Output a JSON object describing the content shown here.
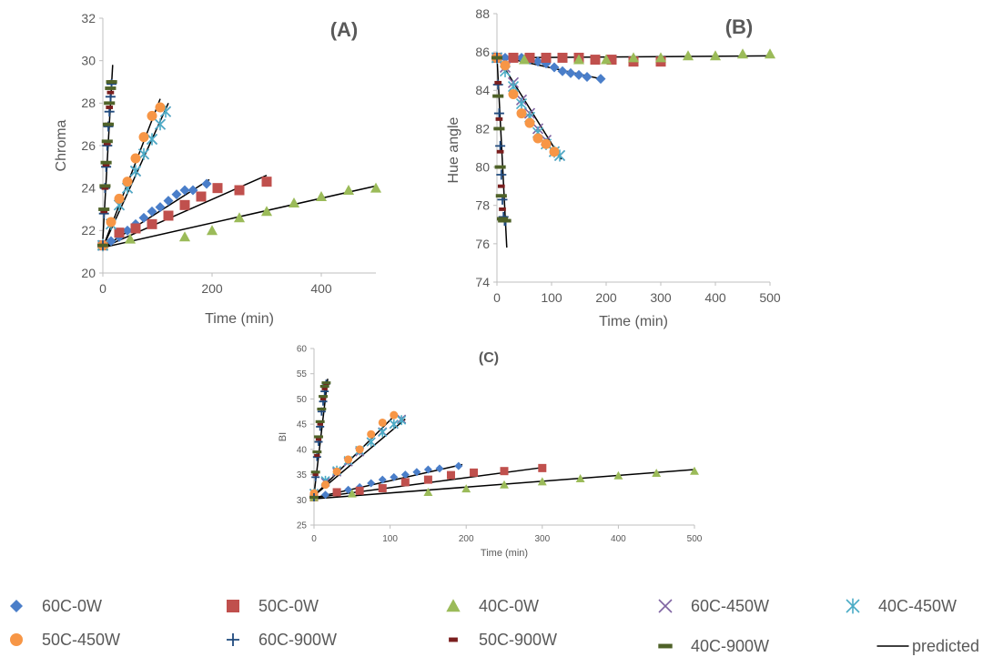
{
  "colors": {
    "60C-0W": "#4a7ec9",
    "50C-0W": "#c0504d",
    "40C-0W": "#9bbb59",
    "60C-450W": "#8064a2",
    "40C-450W": "#4bacc6",
    "50C-450W": "#f79646",
    "60C-900W": "#1f497d",
    "50C-900W": "#7a1e1e",
    "40C-900W": "#4f6228",
    "predicted": "#000000"
  },
  "legend": {
    "entries": [
      {
        "name": "60C-0W",
        "marker": "diamond"
      },
      {
        "name": "50C-0W",
        "marker": "square"
      },
      {
        "name": "40C-0W",
        "marker": "triangle"
      },
      {
        "name": "60C-450W",
        "marker": "x"
      },
      {
        "name": "40C-450W",
        "marker": "star"
      },
      {
        "name": "50C-450W",
        "marker": "circle"
      },
      {
        "name": "60C-900W",
        "marker": "plus"
      },
      {
        "name": "50C-900W",
        "marker": "dash"
      },
      {
        "name": "40C-900W",
        "marker": "bar"
      },
      {
        "name": "predicted",
        "marker": "line"
      }
    ]
  },
  "chart_data": [
    {
      "panel": "(A)",
      "type": "scatter",
      "xlabel": "Time (min)",
      "ylabel": "Chroma",
      "xlim": [
        0,
        500
      ],
      "ylim": [
        20,
        32
      ],
      "xticks": [
        0,
        200,
        400
      ],
      "yticks": [
        20,
        22,
        24,
        26,
        28,
        30,
        32
      ],
      "grid": false,
      "series": [
        {
          "name": "60C-0W",
          "x": [
            0,
            15,
            30,
            45,
            60,
            75,
            90,
            105,
            120,
            135,
            150,
            165,
            190
          ],
          "y": [
            21.3,
            21.5,
            21.7,
            22.0,
            22.3,
            22.6,
            22.9,
            23.1,
            23.4,
            23.7,
            23.9,
            23.9,
            24.2
          ]
        },
        {
          "name": "50C-0W",
          "x": [
            0,
            30,
            60,
            90,
            120,
            150,
            180,
            210,
            250,
            300
          ],
          "y": [
            21.3,
            21.9,
            22.1,
            22.3,
            22.7,
            23.2,
            23.6,
            24.0,
            23.9,
            24.3
          ]
        },
        {
          "name": "40C-0W",
          "x": [
            0,
            50,
            150,
            200,
            250,
            300,
            350,
            400,
            450,
            500
          ],
          "y": [
            21.3,
            21.6,
            21.7,
            22.0,
            22.6,
            22.9,
            23.3,
            23.6,
            23.9,
            24.0
          ]
        },
        {
          "name": "60C-450W",
          "x": [
            0,
            15,
            30,
            45,
            60,
            75,
            90,
            105,
            115
          ],
          "y": [
            21.3,
            22.3,
            23.2,
            24.0,
            24.8,
            25.6,
            26.3,
            27.0,
            27.6
          ]
        },
        {
          "name": "40C-450W",
          "x": [
            0,
            15,
            30,
            45,
            60,
            75,
            90,
            105,
            115
          ],
          "y": [
            21.3,
            22.3,
            23.2,
            24.0,
            24.8,
            25.6,
            26.3,
            27.0,
            27.6
          ]
        },
        {
          "name": "50C-450W",
          "x": [
            0,
            15,
            30,
            45,
            60,
            75,
            90,
            105
          ],
          "y": [
            21.3,
            22.4,
            23.5,
            24.3,
            25.4,
            26.4,
            27.4,
            27.8
          ]
        },
        {
          "name": "60C-900W",
          "x": [
            0,
            2,
            4,
            6,
            8,
            10,
            12,
            14,
            16
          ],
          "y": [
            21.3,
            22.8,
            24.0,
            25.0,
            26.0,
            26.9,
            27.6,
            28.3,
            28.9
          ]
        },
        {
          "name": "50C-900W",
          "x": [
            0,
            2,
            4,
            6,
            8,
            10,
            12,
            14,
            16
          ],
          "y": [
            21.3,
            22.9,
            24.0,
            25.1,
            26.1,
            27.0,
            27.8,
            28.5,
            29.0
          ]
        },
        {
          "name": "40C-900W",
          "x": [
            0,
            2,
            4,
            6,
            8,
            10,
            12,
            14,
            16
          ],
          "y": [
            21.3,
            23.0,
            24.1,
            25.2,
            26.2,
            27.0,
            28.0,
            28.7,
            29.0
          ]
        }
      ],
      "predicted": [
        {
          "x": [
            0,
            195
          ],
          "y": [
            21.2,
            24.4
          ]
        },
        {
          "x": [
            0,
            300
          ],
          "y": [
            21.2,
            24.6
          ]
        },
        {
          "x": [
            0,
            500
          ],
          "y": [
            21.2,
            24.1
          ]
        },
        {
          "x": [
            0,
            120
          ],
          "y": [
            21.2,
            28.0
          ]
        },
        {
          "x": [
            0,
            105
          ],
          "y": [
            21.2,
            28.2
          ]
        },
        {
          "x": [
            0,
            18
          ],
          "y": [
            21.6,
            29.8
          ]
        }
      ]
    },
    {
      "panel": "(B)",
      "type": "scatter",
      "xlabel": "Time (min)",
      "ylabel": "Hue angle",
      "xlim": [
        0,
        500
      ],
      "ylim": [
        74,
        88
      ],
      "xticks": [
        0,
        100,
        200,
        300,
        400,
        500
      ],
      "yticks": [
        74,
        76,
        78,
        80,
        82,
        84,
        86,
        88
      ],
      "grid": false,
      "series": [
        {
          "name": "60C-0W",
          "x": [
            0,
            15,
            30,
            45,
            60,
            75,
            90,
            105,
            120,
            135,
            150,
            165,
            190
          ],
          "y": [
            85.7,
            85.7,
            85.7,
            85.7,
            85.6,
            85.5,
            85.4,
            85.2,
            85.0,
            84.9,
            84.8,
            84.7,
            84.6
          ]
        },
        {
          "name": "50C-0W",
          "x": [
            0,
            30,
            60,
            90,
            120,
            150,
            180,
            210,
            250,
            300
          ],
          "y": [
            85.7,
            85.7,
            85.7,
            85.7,
            85.7,
            85.7,
            85.6,
            85.6,
            85.5,
            85.5
          ]
        },
        {
          "name": "40C-0W",
          "x": [
            0,
            50,
            150,
            200,
            250,
            300,
            350,
            400,
            450,
            500
          ],
          "y": [
            85.7,
            85.6,
            85.6,
            85.6,
            85.7,
            85.7,
            85.8,
            85.8,
            85.9,
            85.9
          ]
        },
        {
          "name": "60C-450W",
          "x": [
            0,
            15,
            30,
            45,
            60,
            75,
            90,
            105,
            115
          ],
          "y": [
            85.7,
            85.2,
            84.4,
            83.5,
            82.8,
            82.0,
            81.4,
            80.8,
            80.6
          ]
        },
        {
          "name": "40C-450W",
          "x": [
            0,
            15,
            30,
            45,
            60,
            75,
            90,
            105,
            115
          ],
          "y": [
            85.7,
            85.0,
            84.2,
            83.3,
            82.6,
            81.8,
            81.2,
            80.8,
            80.6
          ]
        },
        {
          "name": "50C-450W",
          "x": [
            0,
            15,
            30,
            45,
            60,
            75,
            90,
            105
          ],
          "y": [
            85.7,
            85.3,
            83.8,
            82.8,
            82.3,
            81.5,
            81.2,
            80.8
          ]
        },
        {
          "name": "60C-900W",
          "x": [
            0,
            2,
            4,
            6,
            8,
            10,
            12,
            14,
            16
          ],
          "y": [
            85.7,
            84.3,
            82.8,
            81.1,
            79.6,
            78.3,
            77.4,
            77.2,
            77.2
          ]
        },
        {
          "name": "50C-900W",
          "x": [
            0,
            2,
            4,
            6,
            8,
            10,
            12,
            14,
            16
          ],
          "y": [
            85.7,
            84.4,
            82.5,
            80.8,
            79.0,
            77.8,
            77.3,
            77.2,
            77.2
          ]
        },
        {
          "name": "40C-900W",
          "x": [
            0,
            2,
            4,
            6,
            8,
            10,
            12,
            14,
            16
          ],
          "y": [
            85.7,
            83.7,
            82.0,
            80.0,
            78.5,
            77.3,
            77.2,
            77.2,
            77.2
          ]
        }
      ],
      "predicted": [
        {
          "x": [
            0,
            500
          ],
          "y": [
            85.7,
            85.8
          ]
        },
        {
          "x": [
            0,
            190
          ],
          "y": [
            85.8,
            84.6
          ]
        },
        {
          "x": [
            0,
            118
          ],
          "y": [
            85.8,
            80.4
          ]
        },
        {
          "x": [
            0,
            18
          ],
          "y": [
            85.8,
            75.8
          ]
        }
      ]
    },
    {
      "panel": "(C)",
      "type": "scatter",
      "xlabel": "Time (min)",
      "ylabel": "BI",
      "xlim": [
        0,
        500
      ],
      "ylim": [
        25,
        60
      ],
      "xticks": [
        0,
        100,
        200,
        300,
        400,
        500
      ],
      "yticks": [
        25,
        30,
        35,
        40,
        45,
        50,
        55,
        60
      ],
      "grid": false,
      "series": [
        {
          "name": "60C-0W",
          "x": [
            0,
            15,
            30,
            45,
            60,
            75,
            90,
            105,
            120,
            135,
            150,
            165,
            190
          ],
          "y": [
            30.5,
            31.0,
            31.5,
            32.0,
            32.5,
            33.3,
            34.0,
            34.5,
            35.0,
            35.5,
            36.0,
            36.2,
            36.7
          ]
        },
        {
          "name": "50C-0W",
          "x": [
            0,
            30,
            60,
            90,
            120,
            150,
            180,
            210,
            250,
            300
          ],
          "y": [
            30.5,
            31.5,
            31.8,
            32.3,
            33.5,
            34.0,
            34.9,
            35.4,
            35.7,
            36.3
          ]
        },
        {
          "name": "40C-0W",
          "x": [
            0,
            50,
            150,
            200,
            250,
            300,
            350,
            400,
            450,
            500
          ],
          "y": [
            30.5,
            31.2,
            31.5,
            32.2,
            33.0,
            33.6,
            34.2,
            34.8,
            35.3,
            35.7
          ]
        },
        {
          "name": "60C-450W",
          "x": [
            0,
            15,
            30,
            45,
            60,
            75,
            90,
            105,
            115
          ],
          "y": [
            31.3,
            33.5,
            35.5,
            37.5,
            39.5,
            41.5,
            43.5,
            45.0,
            46.0
          ]
        },
        {
          "name": "40C-450W",
          "x": [
            0,
            15,
            30,
            45,
            60,
            75,
            90,
            105,
            115
          ],
          "y": [
            31.3,
            33.8,
            35.8,
            37.8,
            39.8,
            41.5,
            43.4,
            45.0,
            45.8
          ]
        },
        {
          "name": "50C-450W",
          "x": [
            0,
            15,
            30,
            45,
            60,
            75,
            90,
            105
          ],
          "y": [
            31.3,
            33.0,
            35.6,
            38.0,
            40.0,
            43.0,
            45.3,
            46.8
          ]
        },
        {
          "name": "60C-900W",
          "x": [
            0,
            2,
            4,
            6,
            8,
            10,
            12,
            14,
            16
          ],
          "y": [
            30.5,
            34.5,
            38.5,
            41.5,
            44.5,
            47.5,
            49.5,
            51.5,
            53.0
          ]
        },
        {
          "name": "50C-900W",
          "x": [
            0,
            2,
            4,
            6,
            8,
            10,
            12,
            14,
            16
          ],
          "y": [
            30.5,
            35.0,
            38.8,
            42.0,
            45.0,
            48.0,
            50.0,
            52.0,
            53.0
          ]
        },
        {
          "name": "40C-900W",
          "x": [
            0,
            2,
            4,
            6,
            8,
            10,
            12,
            14,
            16
          ],
          "y": [
            30.5,
            35.5,
            39.5,
            42.5,
            45.5,
            48.0,
            50.5,
            52.5,
            53.2
          ]
        }
      ],
      "predicted": [
        {
          "x": [
            0,
            195
          ],
          "y": [
            30.4,
            37.0
          ]
        },
        {
          "x": [
            0,
            300
          ],
          "y": [
            30.4,
            36.4
          ]
        },
        {
          "x": [
            0,
            500
          ],
          "y": [
            30.2,
            36.0
          ]
        },
        {
          "x": [
            0,
            120
          ],
          "y": [
            30.8,
            46.0
          ]
        },
        {
          "x": [
            0,
            108
          ],
          "y": [
            30.8,
            47.0
          ]
        },
        {
          "x": [
            0,
            18
          ],
          "y": [
            31.0,
            54.0
          ]
        }
      ]
    }
  ]
}
